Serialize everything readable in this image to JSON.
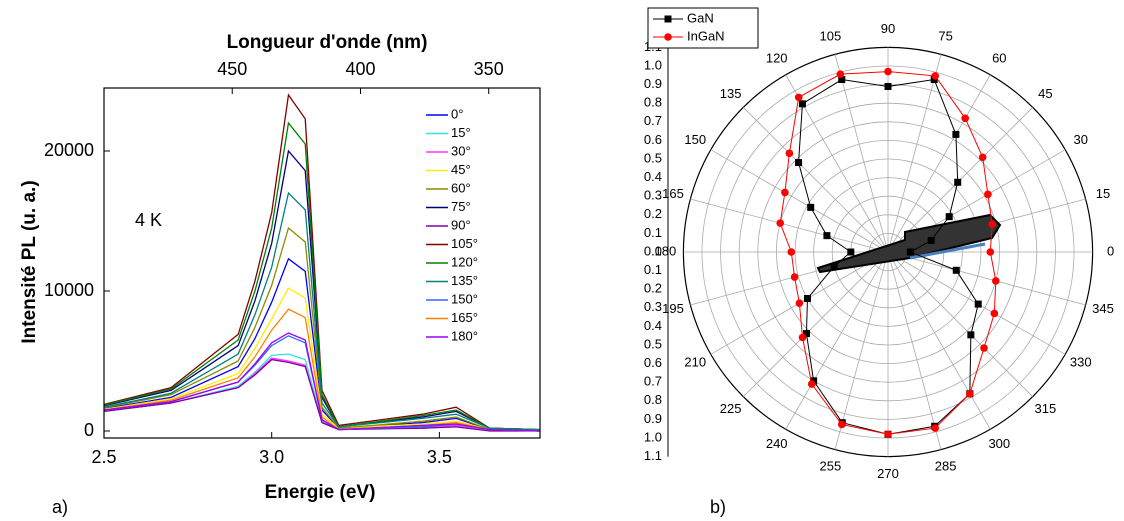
{
  "chart_data": [
    {
      "type": "line",
      "x2label": "Longueur d'onde (nm)",
      "xlabel": "Energie (eV)",
      "ylabel": "Intensité PL  (u. a.)",
      "annotation": "4 K",
      "panel_label": "a)",
      "x": [
        2.5,
        2.7,
        2.9,
        2.95,
        3.0,
        3.05,
        3.1,
        3.15,
        3.2,
        3.45,
        3.55,
        3.65,
        3.8
      ],
      "xlim": [
        2.5,
        3.8
      ],
      "xticks": [
        2.5,
        {
          "value": 3.0,
          "label": "3.0"
        },
        3.5
      ],
      "x2lim": [
        500,
        330
      ],
      "x2ticks": [
        450,
        400,
        350
      ],
      "ylim": [
        -500,
        24500
      ],
      "yticks": [
        0,
        10000,
        20000
      ],
      "series": [
        {
          "name": "0°",
          "color": "#0000ff",
          "values": [
            1600,
            2400,
            4600,
            6600,
            9200,
            12300,
            11400,
            1500,
            200,
            600,
            900,
            100,
            0
          ]
        },
        {
          "name": "15°",
          "color": "#33e0e0",
          "values": [
            1400,
            2000,
            3200,
            4200,
            5400,
            5500,
            5100,
            700,
            100,
            300,
            400,
            100,
            0
          ]
        },
        {
          "name": "30°",
          "color": "#ff33ff",
          "values": [
            1400,
            2000,
            3100,
            4100,
            5200,
            5000,
            4700,
            600,
            100,
            300,
            400,
            100,
            0
          ]
        },
        {
          "name": "45°",
          "color": "#ffee00",
          "values": [
            1550,
            2300,
            4100,
            5900,
            8000,
            10200,
            9500,
            1200,
            200,
            500,
            700,
            100,
            0
          ]
        },
        {
          "name": "60°",
          "color": "#8c8c00",
          "values": [
            1650,
            2600,
            5000,
            7400,
            10400,
            14500,
            13500,
            1700,
            200,
            700,
            1000,
            100,
            100
          ]
        },
        {
          "name": "75°",
          "color": "#000080",
          "values": [
            1800,
            2900,
            6100,
            9300,
            13400,
            20000,
            18600,
            2400,
            300,
            1000,
            1400,
            200,
            100
          ]
        },
        {
          "name": "90°",
          "color": "#8000a0",
          "values": [
            1400,
            2000,
            3100,
            4000,
            5100,
            4900,
            4600,
            600,
            100,
            200,
            300,
            0,
            0
          ]
        },
        {
          "name": "105°",
          "color": "#800000",
          "values": [
            1900,
            3100,
            6900,
            10700,
            15600,
            24000,
            22300,
            2900,
            400,
            1200,
            1700,
            200,
            100
          ]
        },
        {
          "name": "120°",
          "color": "#008000",
          "values": [
            1850,
            3000,
            6500,
            10000,
            14500,
            22000,
            20500,
            2600,
            300,
            1100,
            1500,
            200,
            100
          ]
        },
        {
          "name": "135°",
          "color": "#008080",
          "values": [
            1700,
            2700,
            5500,
            8300,
            11700,
            17000,
            15800,
            2000,
            300,
            900,
            1200,
            200,
            100
          ]
        },
        {
          "name": "150°",
          "color": "#3366ff",
          "values": [
            1500,
            2100,
            3500,
            4700,
            6100,
            6800,
            6300,
            800,
            100,
            300,
            500,
            100,
            0
          ]
        },
        {
          "name": "165°",
          "color": "#ff8000",
          "values": [
            1500,
            2200,
            3800,
            5300,
            7200,
            8700,
            8100,
            1000,
            100,
            400,
            600,
            100,
            0
          ]
        },
        {
          "name": "180°",
          "color": "#9900ff",
          "values": [
            1500,
            2100,
            3500,
            4800,
            6300,
            7000,
            6500,
            800,
            100,
            400,
            500,
            100,
            0
          ]
        }
      ]
    },
    {
      "type": "polar",
      "panel_label": "b)",
      "legend": "upper left",
      "theta": [
        0,
        15,
        30,
        45,
        60,
        75,
        90,
        105,
        120,
        135,
        150,
        165,
        180,
        195,
        210,
        225,
        240,
        255,
        270,
        285,
        300,
        315,
        330,
        345
      ],
      "thetaticks": [
        0,
        15,
        30,
        45,
        60,
        75,
        90,
        105,
        120,
        135,
        150,
        165,
        180,
        195,
        210,
        225,
        240,
        255,
        270,
        285,
        300,
        315,
        330,
        345
      ],
      "rlim": [
        0,
        1.1
      ],
      "rticks": [
        {
          "value": 0,
          "label": "0.0"
        },
        0.1,
        0.2,
        0.3,
        0.4,
        0.5,
        0.6,
        0.7,
        0.8,
        0.9,
        {
          "value": 1,
          "label": "1.0"
        },
        1.1
      ],
      "series": [
        {
          "name": "GaN",
          "color": "#000000",
          "marker": "square",
          "values": [
            0.12,
            0.24,
            0.38,
            0.53,
            0.73,
            0.96,
            0.89,
            0.96,
            0.92,
            0.68,
            0.48,
            0.34,
            0.2,
            0.3,
            0.5,
            0.62,
            0.8,
            0.95,
            0.98,
            0.97,
            0.88,
            0.63,
            0.56,
            0.38
          ]
        },
        {
          "name": "InGaN",
          "color": "#ff0000",
          "marker": "circle",
          "values": [
            0.55,
            0.58,
            0.62,
            0.72,
            0.83,
            0.98,
            0.97,
            0.99,
            0.96,
            0.75,
            0.64,
            0.6,
            0.52,
            0.52,
            0.55,
            0.65,
            0.82,
            0.96,
            0.98,
            0.98,
            0.88,
            0.73,
            0.66,
            0.6
          ]
        }
      ]
    }
  ]
}
